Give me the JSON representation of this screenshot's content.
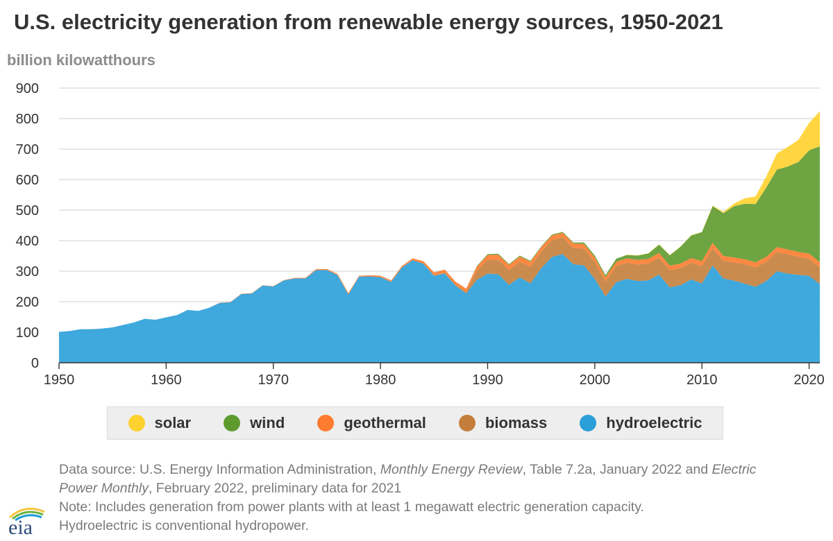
{
  "title": "U.S. electricity generation from renewable energy sources, 1950-2021",
  "footnote": {
    "source_prefix": "Data source: U.S. Energy Information Administration, ",
    "source_pub1": "Monthly Energy Review",
    "source_mid": ", Table 7.2a, January 2022 and ",
    "source_pub2a": "Electric",
    "source_pub2b": "Power Monthly",
    "source_suffix": ", February 2022, preliminary data for 2021",
    "note_line1": "Note: Includes generation from power plants with at least 1 megawatt electric generation capacity.",
    "note_line2": "Hydroelectric is conventional hydropower."
  },
  "logo": {
    "text": "eia"
  },
  "chart_data": {
    "type": "area",
    "stacked": true,
    "ylabel": "billion kilowatthours",
    "ylim": [
      0,
      900
    ],
    "yticks": [
      0,
      100,
      200,
      300,
      400,
      500,
      600,
      700,
      800,
      900
    ],
    "xlim": [
      1950,
      2021
    ],
    "xticks": [
      1950,
      1960,
      1970,
      1980,
      1990,
      2000,
      2010,
      2020
    ],
    "grid": true,
    "legend_position": "bottom",
    "x": [
      1950,
      1951,
      1952,
      1953,
      1954,
      1955,
      1956,
      1957,
      1958,
      1959,
      1960,
      1961,
      1962,
      1963,
      1964,
      1965,
      1966,
      1967,
      1968,
      1969,
      1970,
      1971,
      1972,
      1973,
      1974,
      1975,
      1976,
      1977,
      1978,
      1979,
      1980,
      1981,
      1982,
      1983,
      1984,
      1985,
      1986,
      1987,
      1988,
      1989,
      1990,
      1991,
      1992,
      1993,
      1994,
      1995,
      1996,
      1997,
      1998,
      1999,
      2000,
      2001,
      2002,
      2003,
      2004,
      2005,
      2006,
      2007,
      2008,
      2009,
      2010,
      2011,
      2012,
      2013,
      2014,
      2015,
      2016,
      2017,
      2018,
      2019,
      2020,
      2021
    ],
    "series": [
      {
        "name": "hydroelectric",
        "color": "#2a9fd8",
        "values": [
          101,
          104,
          110,
          110,
          112,
          116,
          124,
          132,
          144,
          141,
          149,
          156,
          173,
          170,
          180,
          196,
          198,
          225,
          227,
          253,
          250,
          270,
          276,
          276,
          304,
          304,
          287,
          224,
          282,
          283,
          280,
          265,
          312,
          336,
          325,
          285,
          293,
          253,
          227,
          272,
          292,
          290,
          255,
          280,
          260,
          310,
          347,
          356,
          323,
          319,
          275,
          217,
          264,
          275,
          268,
          270,
          289,
          247,
          254,
          273,
          260,
          319,
          276,
          269,
          259,
          249,
          268,
          300,
          292,
          288,
          285,
          258
        ]
      },
      {
        "name": "biomass",
        "color": "#c47e3b",
        "values": [
          0,
          0,
          0,
          0,
          0,
          0,
          0,
          0,
          0,
          0,
          0,
          0,
          0,
          0,
          0,
          0,
          0,
          0,
          0,
          0,
          0,
          0,
          0,
          0,
          0,
          0,
          0,
          0,
          0,
          0,
          0,
          0,
          0,
          0,
          0,
          1,
          1,
          2,
          5,
          29,
          45,
          48,
          49,
          51,
          55,
          54,
          54,
          55,
          53,
          55,
          56,
          49,
          53,
          53,
          54,
          55,
          56,
          56,
          56,
          55,
          57,
          57,
          58,
          60,
          64,
          64,
          63,
          63,
          63,
          59,
          56,
          55
        ]
      },
      {
        "name": "geothermal",
        "color": "#ff7b2e",
        "values": [
          0,
          0,
          0,
          0,
          0,
          0,
          0,
          0,
          0,
          0,
          0,
          0,
          0,
          0,
          0,
          1,
          1,
          1,
          1,
          1,
          1,
          1,
          2,
          2,
          3,
          3,
          4,
          4,
          3,
          4,
          5,
          5,
          5,
          6,
          8,
          10,
          11,
          11,
          11,
          14,
          16,
          16,
          16,
          17,
          16,
          14,
          16,
          15,
          15,
          15,
          14,
          14,
          14,
          14,
          15,
          15,
          15,
          15,
          15,
          15,
          16,
          17,
          16,
          16,
          16,
          16,
          16,
          16,
          16,
          16,
          17,
          16
        ]
      },
      {
        "name": "wind",
        "color": "#5e9a2e",
        "values": [
          0,
          0,
          0,
          0,
          0,
          0,
          0,
          0,
          0,
          0,
          0,
          0,
          0,
          0,
          0,
          0,
          0,
          0,
          0,
          0,
          0,
          0,
          0,
          0,
          0,
          0,
          0,
          0,
          0,
          0,
          0,
          0,
          0,
          0,
          0,
          0,
          0,
          0,
          0,
          2,
          3,
          3,
          3,
          3,
          3,
          3,
          3,
          3,
          3,
          5,
          6,
          7,
          10,
          11,
          14,
          18,
          27,
          34,
          55,
          74,
          95,
          120,
          140,
          168,
          182,
          191,
          227,
          254,
          272,
          295,
          338,
          380
        ]
      },
      {
        "name": "solar",
        "color": "#ffd12e",
        "values": [
          0,
          0,
          0,
          0,
          0,
          0,
          0,
          0,
          0,
          0,
          0,
          0,
          0,
          0,
          0,
          0,
          0,
          0,
          0,
          0,
          0,
          0,
          0,
          0,
          0,
          0,
          0,
          0,
          0,
          0,
          0,
          0,
          0,
          0,
          0,
          0,
          0,
          0,
          0,
          0,
          0,
          0,
          0,
          0,
          0,
          0,
          0,
          0,
          0,
          0,
          0,
          0,
          0,
          1,
          1,
          1,
          1,
          1,
          1,
          1,
          1,
          2,
          4,
          9,
          18,
          25,
          36,
          53,
          64,
          72,
          90,
          115
        ]
      }
    ]
  }
}
